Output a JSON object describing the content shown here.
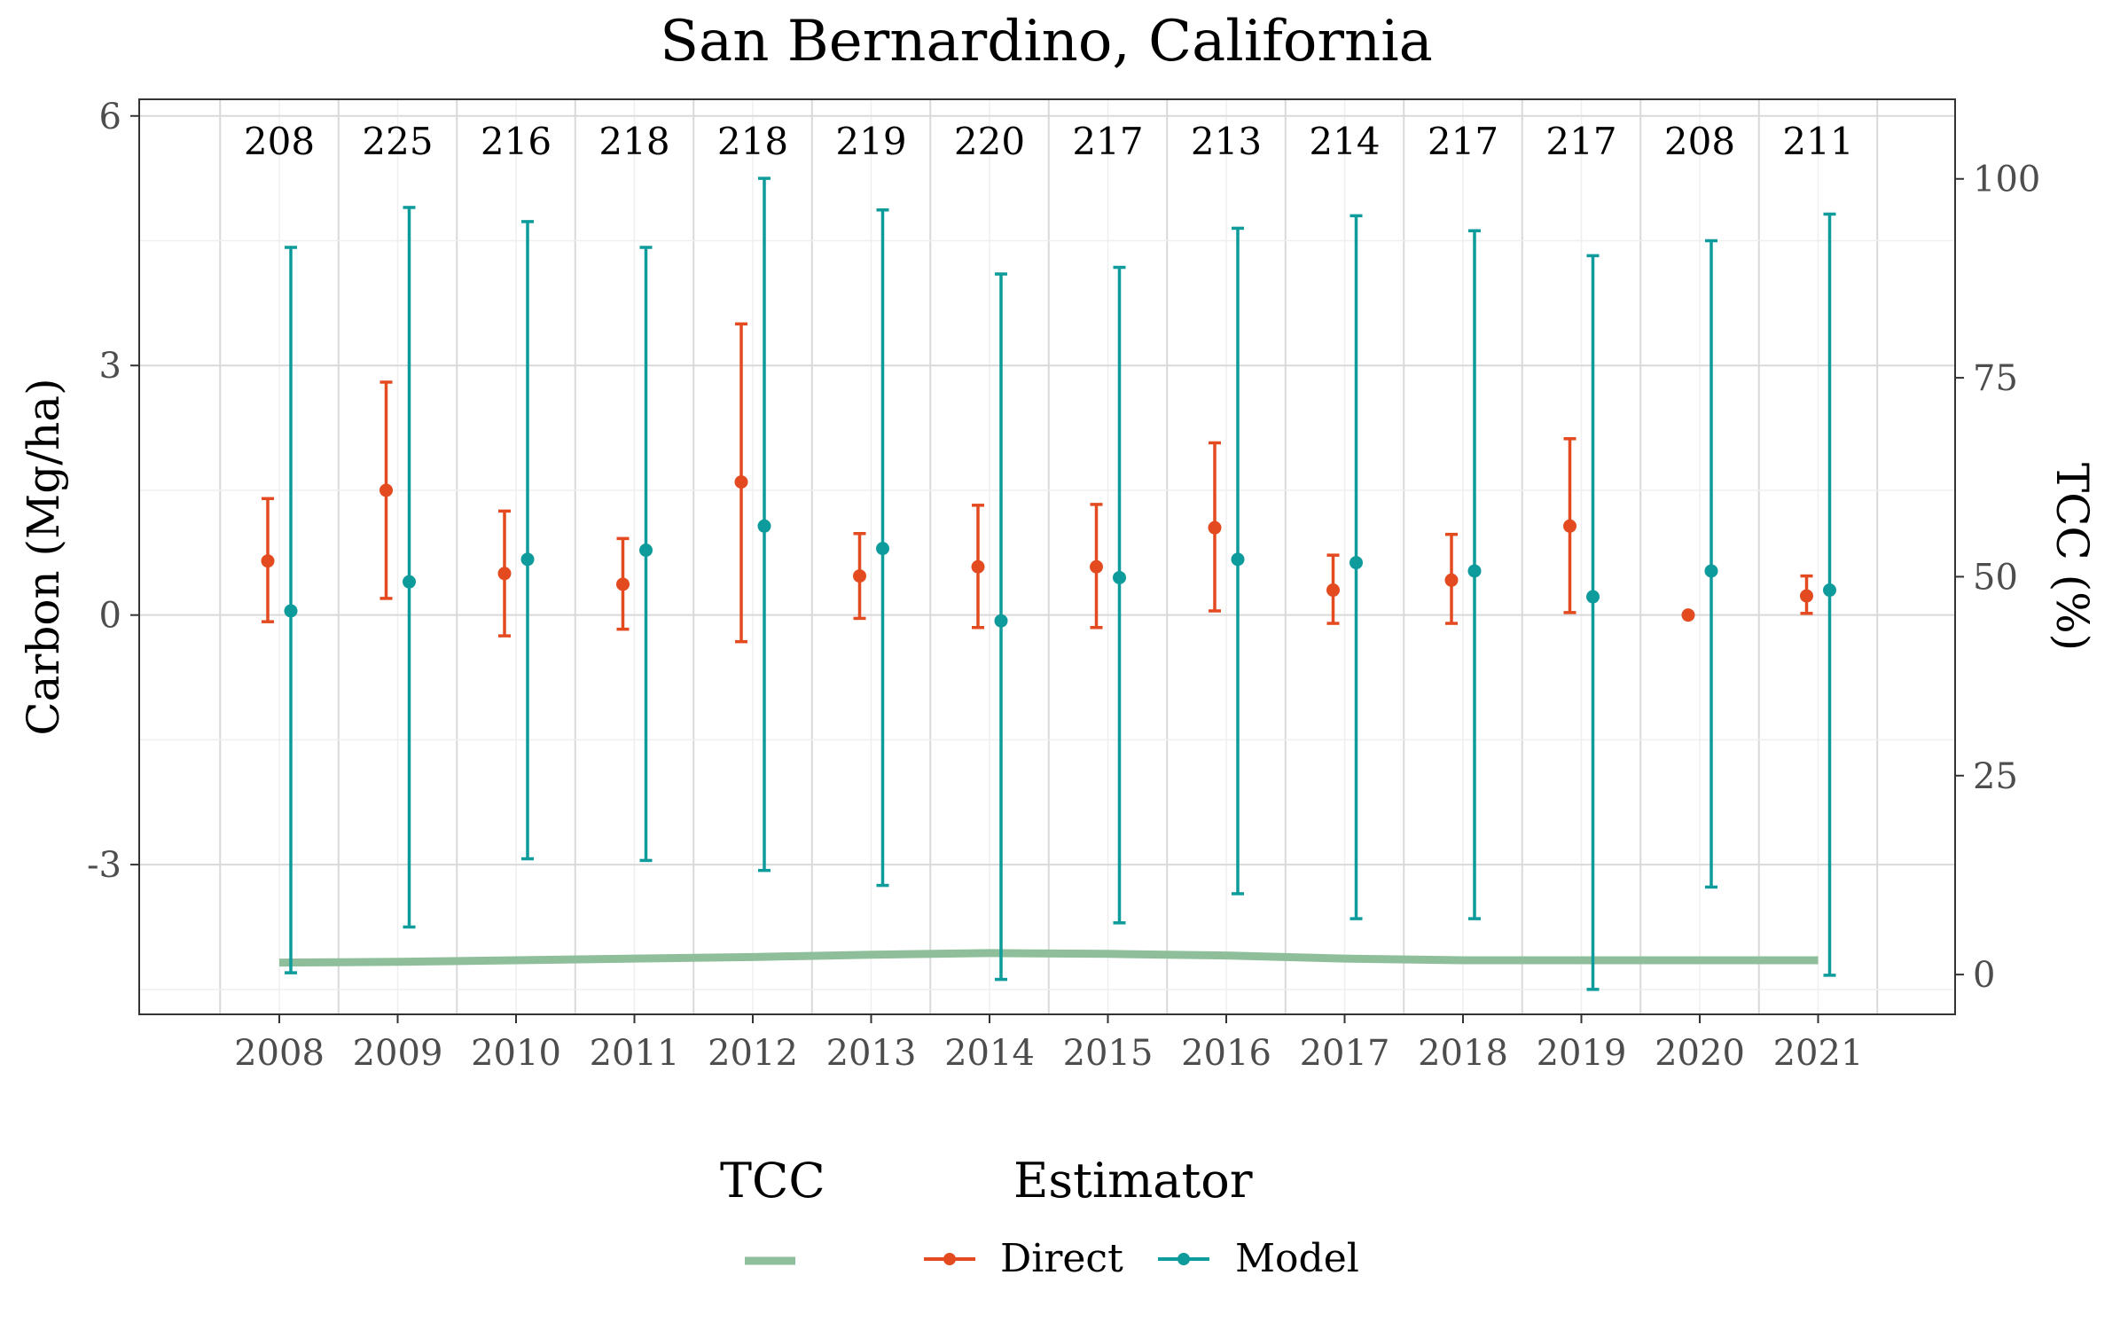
{
  "chart_data": {
    "type": "scatter",
    "title": "San Bernardino, California",
    "xlabel": "",
    "ylabel": "Carbon (Mg/ha)",
    "y2label": "TCC (%)",
    "categories": [
      "2008",
      "2009",
      "2010",
      "2011",
      "2012",
      "2013",
      "2014",
      "2015",
      "2016",
      "2017",
      "2018",
      "2019",
      "2020",
      "2021"
    ],
    "counts": [
      "208",
      "225",
      "216",
      "218",
      "218",
      "219",
      "220",
      "217",
      "213",
      "214",
      "217",
      "217",
      "208",
      "211"
    ],
    "ylim": [
      -4.8,
      6.2
    ],
    "yticks": [
      6,
      3,
      0,
      -3
    ],
    "ytick_labels": [
      "6",
      "3",
      "0",
      "-3"
    ],
    "y2lim": [
      -5,
      110
    ],
    "y2ticks": [
      100,
      75,
      50,
      25,
      0
    ],
    "y2tick_labels": [
      "100",
      "75",
      "50",
      "25",
      "0"
    ],
    "grid": true,
    "legend_position": "bottom",
    "series": [
      {
        "name": "Direct",
        "color": "#E34A1F",
        "values": [
          0.65,
          1.5,
          0.5,
          0.37,
          1.6,
          0.47,
          0.58,
          0.58,
          1.05,
          0.3,
          0.42,
          1.07,
          0.0,
          0.23
        ],
        "lower": [
          -0.08,
          0.2,
          -0.25,
          -0.17,
          -0.32,
          -0.04,
          -0.15,
          -0.15,
          0.05,
          -0.1,
          -0.1,
          0.03,
          null,
          0.02
        ],
        "upper": [
          1.4,
          2.8,
          1.25,
          0.92,
          3.5,
          0.98,
          1.32,
          1.33,
          2.07,
          0.72,
          0.97,
          2.12,
          null,
          0.47
        ]
      },
      {
        "name": "Model",
        "color": "#0E9B9B",
        "values": [
          0.05,
          0.4,
          0.67,
          0.78,
          1.07,
          0.8,
          -0.07,
          0.45,
          0.67,
          0.63,
          0.53,
          0.22,
          0.53,
          0.3
        ],
        "lower": [
          -4.3,
          -3.75,
          -2.93,
          -2.95,
          -3.07,
          -3.25,
          -4.38,
          -3.7,
          -3.35,
          -3.65,
          -3.65,
          -4.5,
          -3.27,
          -4.33
        ],
        "upper": [
          4.42,
          4.9,
          4.73,
          4.42,
          5.25,
          4.87,
          4.1,
          4.18,
          4.65,
          4.8,
          4.62,
          4.32,
          4.5,
          4.82
        ]
      }
    ],
    "tcc": {
      "name": "",
      "color": "#8FBF9A",
      "values": [
        1.5,
        1.6,
        1.8,
        2.0,
        2.2,
        2.5,
        2.7,
        2.6,
        2.4,
        2.0,
        1.8,
        1.8,
        1.8,
        1.8
      ]
    },
    "legend": {
      "tcc_title": "TCC",
      "estimator_title": "Estimator",
      "entries": [
        "Direct",
        "Model"
      ]
    }
  }
}
